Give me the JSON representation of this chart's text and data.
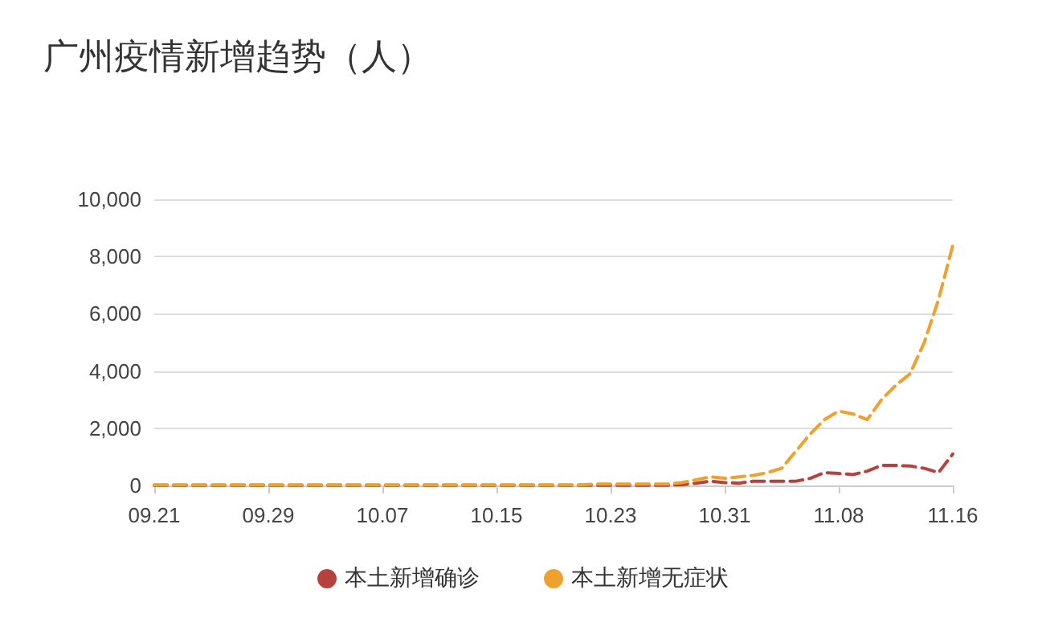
{
  "chart_data": {
    "type": "line",
    "title": "广州疫情新增趋势（人）",
    "categories": [
      "09.21",
      null,
      null,
      null,
      null,
      null,
      null,
      null,
      "09.29",
      null,
      null,
      null,
      null,
      null,
      null,
      null,
      "10.07",
      null,
      null,
      null,
      null,
      null,
      null,
      null,
      "10.15",
      null,
      null,
      null,
      null,
      null,
      null,
      null,
      "10.23",
      null,
      null,
      null,
      null,
      null,
      null,
      null,
      "10.31",
      null,
      null,
      null,
      null,
      null,
      null,
      null,
      "11.08",
      null,
      null,
      null,
      null,
      null,
      null,
      null,
      "11.16"
    ],
    "series": [
      {
        "name": "本土新增确诊",
        "color": "#b5423c",
        "values": [
          10,
          10,
          10,
          10,
          10,
          10,
          10,
          10,
          10,
          10,
          10,
          10,
          10,
          10,
          10,
          10,
          10,
          10,
          10,
          10,
          10,
          10,
          10,
          10,
          10,
          10,
          10,
          10,
          10,
          10,
          10,
          10,
          10,
          10,
          10,
          10,
          10,
          30,
          80,
          150,
          100,
          80,
          150,
          150,
          150,
          150,
          250,
          450,
          420,
          380,
          500,
          700,
          700,
          680,
          600,
          450,
          1100
        ]
      },
      {
        "name": "本土新增无症状",
        "color": "#f0a02c",
        "values": [
          20,
          20,
          20,
          20,
          20,
          20,
          20,
          20,
          20,
          20,
          20,
          20,
          20,
          20,
          20,
          20,
          20,
          20,
          20,
          20,
          20,
          20,
          20,
          20,
          20,
          20,
          20,
          20,
          20,
          20,
          20,
          50,
          50,
          50,
          50,
          50,
          50,
          100,
          200,
          300,
          250,
          300,
          350,
          450,
          600,
          1200,
          1800,
          2300,
          2600,
          2500,
          2300,
          3000,
          3500,
          3900,
          5000,
          6500,
          8400
        ]
      }
    ],
    "ylim": [
      0,
      10000
    ],
    "yticks": [
      {
        "value": 0,
        "label": "0"
      },
      {
        "value": 2000,
        "label": "2,000"
      },
      {
        "value": 4000,
        "label": "4,000"
      },
      {
        "value": 6000,
        "label": "6,000"
      },
      {
        "value": 8000,
        "label": "8,000"
      },
      {
        "value": 10000,
        "label": "10,000"
      }
    ],
    "grid": "y",
    "legend": "bottom",
    "marker": "none",
    "line_style": "dashed"
  }
}
